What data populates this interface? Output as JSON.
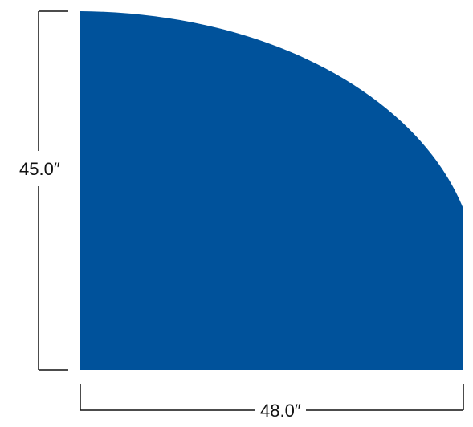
{
  "diagram": {
    "shape": "quarter-round table top",
    "shape_color": "#00529B",
    "line_color": "#111111",
    "dimensions": {
      "height_label": "45.0″",
      "width_label": "48.0″"
    }
  }
}
